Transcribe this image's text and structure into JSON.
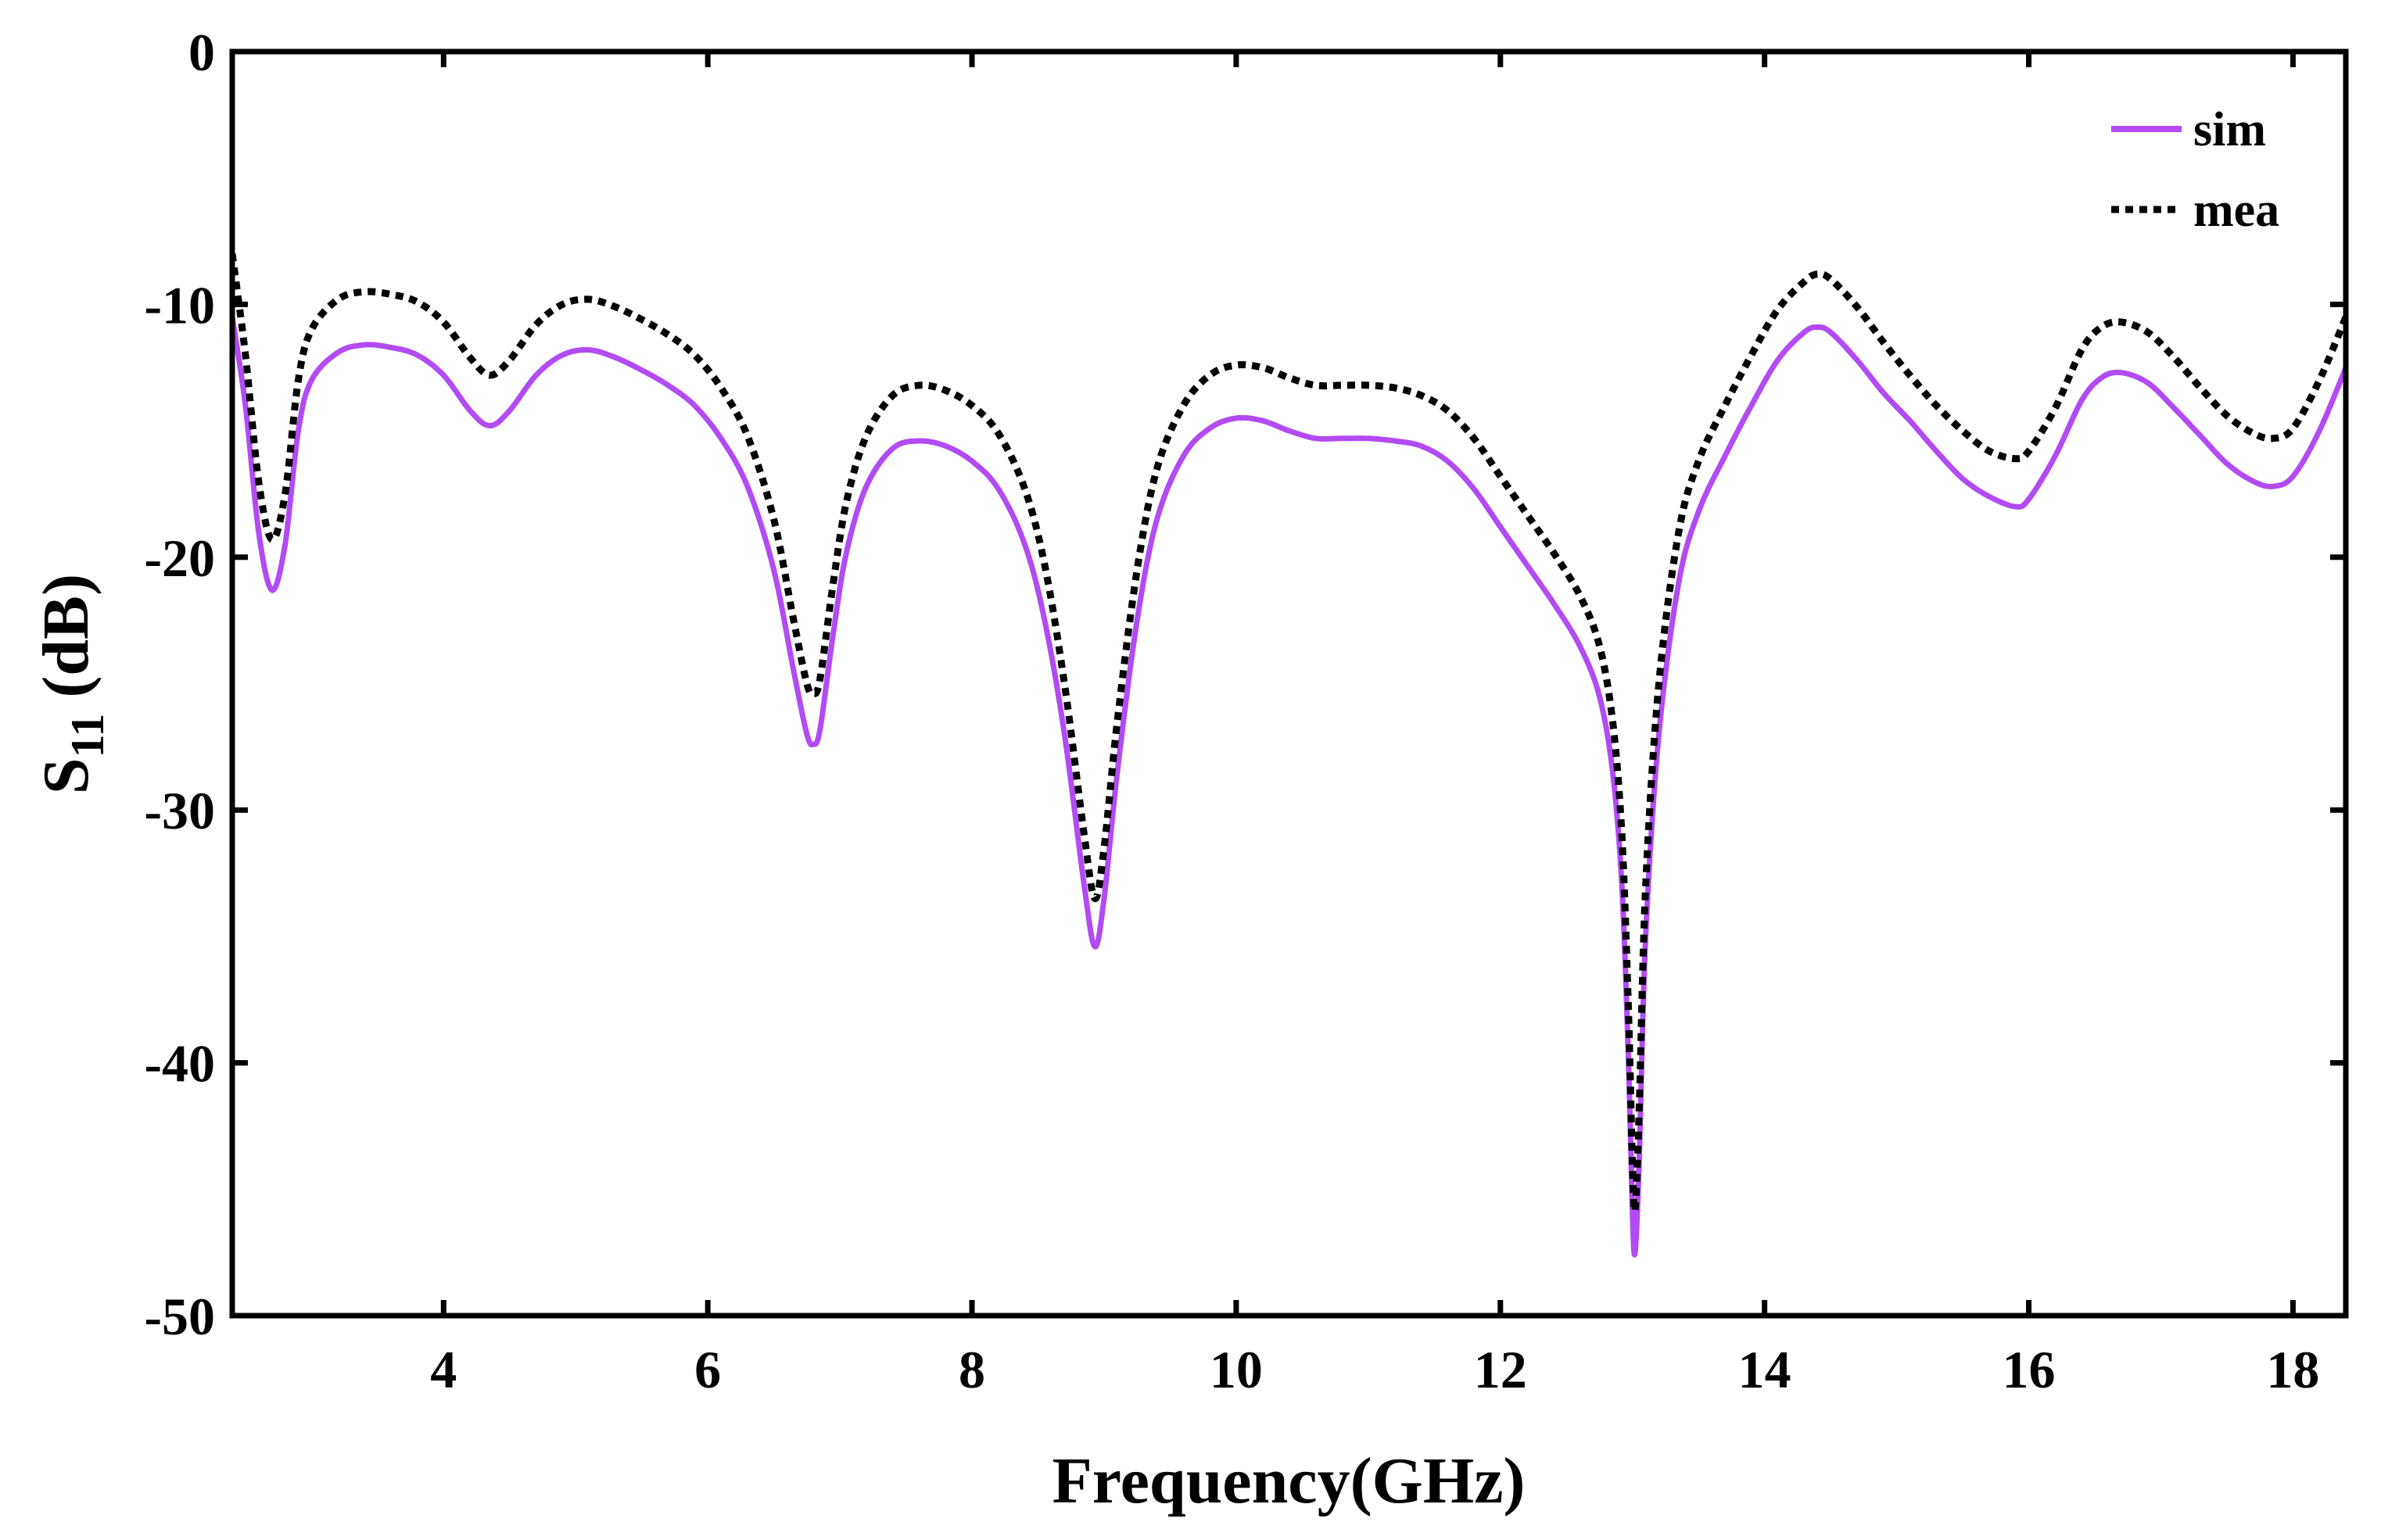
{
  "chart_data": {
    "type": "line",
    "title": "",
    "xlabel": "Frequency(GHz)",
    "ylabel_main": "S",
    "ylabel_sub": "11",
    "ylabel_unit": "(dB)",
    "xlim": [
      2.4,
      18.4
    ],
    "ylim": [
      -50,
      0
    ],
    "xticks": [
      4,
      6,
      8,
      10,
      12,
      14,
      16,
      18
    ],
    "xtick_labels": [
      "4",
      "6",
      "8",
      "10",
      "12",
      "14",
      "16",
      "18"
    ],
    "yticks": [
      0,
      -10,
      -20,
      -30,
      -40,
      -50
    ],
    "ytick_labels": [
      "0",
      "-10",
      "-20",
      "-30",
      "-40",
      "-50"
    ],
    "grid": false,
    "legend_position": "top-right",
    "series": [
      {
        "name": "sim",
        "color": "#B24BF3",
        "style": "solid",
        "points": [
          [
            2.4,
            -10.5
          ],
          [
            2.5,
            -14
          ],
          [
            2.6,
            -19
          ],
          [
            2.7,
            -21.3
          ],
          [
            2.8,
            -19.5
          ],
          [
            2.9,
            -15
          ],
          [
            3.0,
            -13
          ],
          [
            3.2,
            -11.9
          ],
          [
            3.4,
            -11.6
          ],
          [
            3.6,
            -11.7
          ],
          [
            3.8,
            -12.0
          ],
          [
            4.0,
            -12.8
          ],
          [
            4.2,
            -14.2
          ],
          [
            4.35,
            -14.8
          ],
          [
            4.5,
            -14.2
          ],
          [
            4.7,
            -12.8
          ],
          [
            4.9,
            -12.0
          ],
          [
            5.1,
            -11.8
          ],
          [
            5.3,
            -12.1
          ],
          [
            5.5,
            -12.6
          ],
          [
            5.7,
            -13.2
          ],
          [
            5.9,
            -14.0
          ],
          [
            6.1,
            -15.3
          ],
          [
            6.3,
            -17.2
          ],
          [
            6.5,
            -20.5
          ],
          [
            6.65,
            -24.5
          ],
          [
            6.75,
            -27.0
          ],
          [
            6.8,
            -27.4
          ],
          [
            6.85,
            -26.8
          ],
          [
            6.95,
            -23.0
          ],
          [
            7.05,
            -19.8
          ],
          [
            7.2,
            -17.2
          ],
          [
            7.4,
            -15.7
          ],
          [
            7.6,
            -15.4
          ],
          [
            7.8,
            -15.6
          ],
          [
            8.0,
            -16.2
          ],
          [
            8.2,
            -17.3
          ],
          [
            8.4,
            -19.5
          ],
          [
            8.55,
            -22.5
          ],
          [
            8.7,
            -27.0
          ],
          [
            8.85,
            -33.0
          ],
          [
            8.93,
            -35.4
          ],
          [
            9.0,
            -33.5
          ],
          [
            9.1,
            -28.5
          ],
          [
            9.25,
            -22.5
          ],
          [
            9.4,
            -18.5
          ],
          [
            9.6,
            -16.0
          ],
          [
            9.8,
            -14.9
          ],
          [
            10.0,
            -14.5
          ],
          [
            10.2,
            -14.6
          ],
          [
            10.4,
            -15.0
          ],
          [
            10.6,
            -15.3
          ],
          [
            10.8,
            -15.3
          ],
          [
            11.0,
            -15.3
          ],
          [
            11.2,
            -15.4
          ],
          [
            11.4,
            -15.6
          ],
          [
            11.6,
            -16.2
          ],
          [
            11.8,
            -17.3
          ],
          [
            12.0,
            -18.8
          ],
          [
            12.2,
            -20.3
          ],
          [
            12.4,
            -21.8
          ],
          [
            12.6,
            -23.5
          ],
          [
            12.75,
            -25.5
          ],
          [
            12.85,
            -28.5
          ],
          [
            12.92,
            -33.0
          ],
          [
            12.97,
            -40.0
          ],
          [
            13.0,
            -46.0
          ],
          [
            13.02,
            -47.5
          ],
          [
            13.05,
            -44.0
          ],
          [
            13.1,
            -35.0
          ],
          [
            13.2,
            -27.0
          ],
          [
            13.35,
            -21.0
          ],
          [
            13.5,
            -18.2
          ],
          [
            13.7,
            -16.0
          ],
          [
            13.9,
            -14.0
          ],
          [
            14.1,
            -12.2
          ],
          [
            14.3,
            -11.1
          ],
          [
            14.4,
            -10.9
          ],
          [
            14.5,
            -11.1
          ],
          [
            14.7,
            -12.2
          ],
          [
            14.9,
            -13.5
          ],
          [
            15.1,
            -14.6
          ],
          [
            15.3,
            -15.8
          ],
          [
            15.5,
            -16.9
          ],
          [
            15.7,
            -17.6
          ],
          [
            15.9,
            -18.0
          ],
          [
            16.0,
            -17.7
          ],
          [
            16.2,
            -16.0
          ],
          [
            16.4,
            -13.8
          ],
          [
            16.55,
            -12.9
          ],
          [
            16.7,
            -12.7
          ],
          [
            16.9,
            -13.1
          ],
          [
            17.1,
            -14.1
          ],
          [
            17.3,
            -15.2
          ],
          [
            17.5,
            -16.3
          ],
          [
            17.7,
            -17.0
          ],
          [
            17.85,
            -17.2
          ],
          [
            18.0,
            -16.8
          ],
          [
            18.2,
            -15.0
          ],
          [
            18.4,
            -12.5
          ]
        ]
      },
      {
        "name": "mea",
        "color": "#000000",
        "style": "dotted",
        "points": [
          [
            2.4,
            -8.0
          ],
          [
            2.5,
            -12
          ],
          [
            2.6,
            -17
          ],
          [
            2.7,
            -19.3
          ],
          [
            2.8,
            -17.5
          ],
          [
            2.9,
            -13
          ],
          [
            3.0,
            -11
          ],
          [
            3.2,
            -9.8
          ],
          [
            3.4,
            -9.5
          ],
          [
            3.6,
            -9.6
          ],
          [
            3.8,
            -9.9
          ],
          [
            4.0,
            -10.7
          ],
          [
            4.2,
            -12.1
          ],
          [
            4.35,
            -12.8
          ],
          [
            4.5,
            -12.2
          ],
          [
            4.7,
            -10.8
          ],
          [
            4.9,
            -10.0
          ],
          [
            5.1,
            -9.8
          ],
          [
            5.3,
            -10.1
          ],
          [
            5.5,
            -10.6
          ],
          [
            5.7,
            -11.2
          ],
          [
            5.9,
            -12.0
          ],
          [
            6.1,
            -13.3
          ],
          [
            6.3,
            -15.2
          ],
          [
            6.5,
            -18.5
          ],
          [
            6.65,
            -22.5
          ],
          [
            6.75,
            -25.0
          ],
          [
            6.8,
            -25.4
          ],
          [
            6.85,
            -24.8
          ],
          [
            6.95,
            -21.0
          ],
          [
            7.05,
            -17.8
          ],
          [
            7.2,
            -15.2
          ],
          [
            7.4,
            -13.6
          ],
          [
            7.6,
            -13.2
          ],
          [
            7.8,
            -13.4
          ],
          [
            8.0,
            -14.0
          ],
          [
            8.2,
            -15.1
          ],
          [
            8.4,
            -17.3
          ],
          [
            8.55,
            -20.3
          ],
          [
            8.7,
            -25.0
          ],
          [
            8.85,
            -31.0
          ],
          [
            8.93,
            -33.5
          ],
          [
            9.0,
            -31.5
          ],
          [
            9.1,
            -26.5
          ],
          [
            9.25,
            -20.5
          ],
          [
            9.4,
            -16.5
          ],
          [
            9.6,
            -14.0
          ],
          [
            9.8,
            -12.8
          ],
          [
            10.0,
            -12.4
          ],
          [
            10.2,
            -12.5
          ],
          [
            10.4,
            -12.9
          ],
          [
            10.6,
            -13.2
          ],
          [
            10.8,
            -13.2
          ],
          [
            11.0,
            -13.2
          ],
          [
            11.2,
            -13.3
          ],
          [
            11.4,
            -13.6
          ],
          [
            11.6,
            -14.2
          ],
          [
            11.8,
            -15.3
          ],
          [
            12.0,
            -16.8
          ],
          [
            12.2,
            -18.3
          ],
          [
            12.4,
            -19.8
          ],
          [
            12.6,
            -21.5
          ],
          [
            12.75,
            -23.5
          ],
          [
            12.85,
            -26.5
          ],
          [
            12.92,
            -31.0
          ],
          [
            12.97,
            -38.0
          ],
          [
            13.0,
            -44.0
          ],
          [
            13.02,
            -45.8
          ],
          [
            13.05,
            -42.0
          ],
          [
            13.1,
            -33.0
          ],
          [
            13.2,
            -25.0
          ],
          [
            13.35,
            -19.0
          ],
          [
            13.5,
            -16.2
          ],
          [
            13.7,
            -14.0
          ],
          [
            13.9,
            -12.0
          ],
          [
            14.1,
            -10.2
          ],
          [
            14.3,
            -9.1
          ],
          [
            14.4,
            -8.8
          ],
          [
            14.5,
            -9.0
          ],
          [
            14.7,
            -10.1
          ],
          [
            14.9,
            -11.5
          ],
          [
            15.1,
            -12.8
          ],
          [
            15.3,
            -14.0
          ],
          [
            15.5,
            -15.0
          ],
          [
            15.7,
            -15.8
          ],
          [
            15.9,
            -16.1
          ],
          [
            16.0,
            -15.8
          ],
          [
            16.2,
            -14.1
          ],
          [
            16.4,
            -11.8
          ],
          [
            16.55,
            -10.9
          ],
          [
            16.7,
            -10.7
          ],
          [
            16.9,
            -11.1
          ],
          [
            17.1,
            -12.1
          ],
          [
            17.3,
            -13.3
          ],
          [
            17.5,
            -14.4
          ],
          [
            17.7,
            -15.1
          ],
          [
            17.85,
            -15.3
          ],
          [
            18.0,
            -14.9
          ],
          [
            18.2,
            -13.0
          ],
          [
            18.4,
            -10.5
          ]
        ]
      }
    ]
  }
}
